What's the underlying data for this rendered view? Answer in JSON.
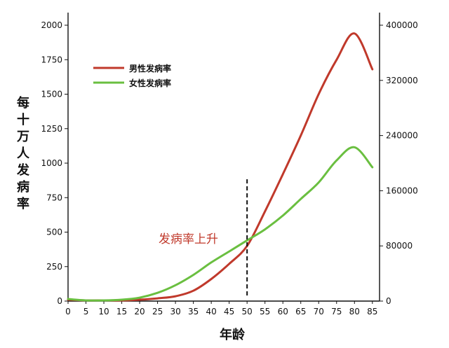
{
  "chart_data": {
    "type": "line",
    "title": "",
    "xlabel": "年龄",
    "ylabel": "每十万人发病率",
    "x": [
      0,
      5,
      10,
      15,
      20,
      25,
      30,
      35,
      40,
      45,
      50,
      55,
      60,
      65,
      70,
      75,
      80,
      85
    ],
    "xlim": [
      0,
      87
    ],
    "ylim": [
      0,
      2000
    ],
    "y2lim": [
      0,
      400000
    ],
    "y_ticks": [
      0,
      250,
      500,
      750,
      1000,
      1250,
      1500,
      1750,
      2000
    ],
    "y2_ticks": [
      0,
      80000,
      160000,
      240000,
      320000,
      400000
    ],
    "x_ticks": [
      0,
      5,
      10,
      15,
      20,
      25,
      30,
      35,
      40,
      45,
      50,
      55,
      60,
      65,
      70,
      75,
      80,
      85
    ],
    "series": [
      {
        "name": "男性发病率",
        "color": "#c0392b",
        "values": [
          10,
          5,
          5,
          5,
          10,
          20,
          35,
          75,
          160,
          270,
          400,
          650,
          920,
          1200,
          1500,
          1750,
          1940,
          1680
        ]
      },
      {
        "name": "女性发病率",
        "color": "#6abf40",
        "values": [
          15,
          5,
          5,
          10,
          25,
          60,
          115,
          190,
          280,
          360,
          440,
          520,
          620,
          740,
          860,
          1020,
          1115,
          970
        ]
      }
    ],
    "legend_position": "top-left",
    "grid": false,
    "annotation": {
      "text": "发病率上升",
      "x": 50,
      "style": "dashed-vertical-line"
    }
  }
}
